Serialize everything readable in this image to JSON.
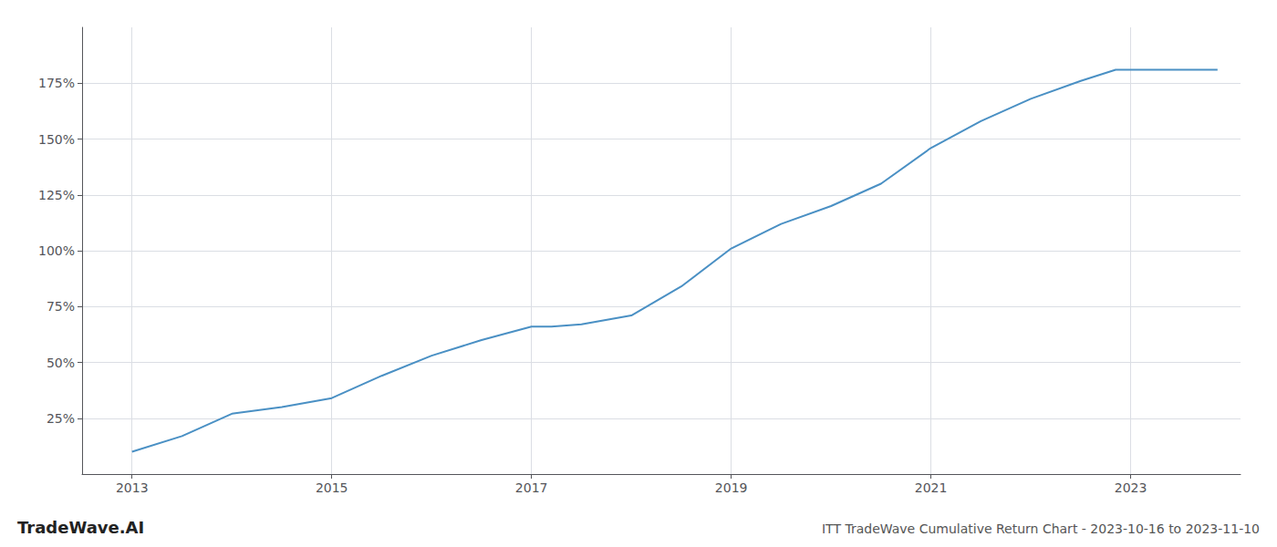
{
  "chart_data": {
    "type": "line",
    "title": "ITT TradeWave Cumulative Return Chart - 2023-10-16 to 2023-11-10",
    "annotations": [
      "TradeWave.AI"
    ],
    "x": [
      2013.0,
      2013.5,
      2014.0,
      2014.5,
      2015.0,
      2015.5,
      2016.0,
      2016.5,
      2017.0,
      2017.2,
      2017.5,
      2018.0,
      2018.5,
      2019.0,
      2019.5,
      2020.0,
      2020.5,
      2021.0,
      2021.5,
      2022.0,
      2022.5,
      2022.85,
      2023.0,
      2023.87
    ],
    "values": [
      10,
      17,
      27,
      30,
      34,
      44,
      53,
      60,
      66,
      66,
      67,
      71,
      84,
      101,
      112,
      120,
      130,
      146,
      158,
      168,
      176,
      181,
      181,
      181
    ],
    "color": "#4a90c4",
    "xlim": [
      2012.5,
      2024.1
    ],
    "ylim": [
      0,
      200
    ],
    "xticks": [
      2013,
      2015,
      2017,
      2019,
      2021,
      2023
    ],
    "yticks": [
      {
        "value": 25,
        "label": "25%"
      },
      {
        "value": 50,
        "label": "50%"
      },
      {
        "value": 75,
        "label": "75%"
      },
      {
        "value": 100,
        "label": "100%"
      },
      {
        "value": 125,
        "label": "125%"
      },
      {
        "value": 150,
        "label": "150%"
      },
      {
        "value": 175,
        "label": "175%"
      }
    ],
    "grid": true
  }
}
